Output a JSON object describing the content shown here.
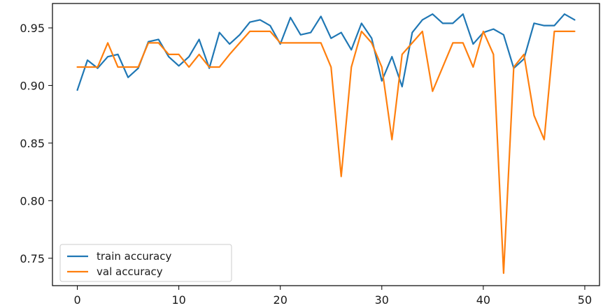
{
  "chart_data": {
    "type": "line",
    "title": "",
    "xlabel": "",
    "ylabel": "",
    "xlim": [
      -2.45,
      51.45
    ],
    "ylim": [
      0.7262,
      0.9712
    ],
    "xticks": [
      0,
      10,
      20,
      30,
      40,
      50
    ],
    "yticks": [
      0.75,
      0.8,
      0.85,
      0.9,
      0.95
    ],
    "ytick_labels": [
      "0.75",
      "0.80",
      "0.85",
      "0.90",
      "0.95"
    ],
    "xtick_labels": [
      "0",
      "10",
      "20",
      "30",
      "40",
      "50"
    ],
    "grid": false,
    "legend_position": "lower-left",
    "x": [
      0,
      1,
      2,
      3,
      4,
      5,
      6,
      7,
      8,
      9,
      10,
      11,
      12,
      13,
      14,
      15,
      16,
      17,
      18,
      19,
      20,
      21,
      22,
      23,
      24,
      25,
      26,
      27,
      28,
      29,
      30,
      31,
      32,
      33,
      34,
      35,
      36,
      37,
      38,
      39,
      40,
      41,
      42,
      43,
      44,
      45,
      46,
      47,
      48,
      49
    ],
    "series": [
      {
        "name": "train accuracy",
        "color": "#1f77b4",
        "values": [
          0.896,
          0.922,
          0.915,
          0.925,
          0.927,
          0.907,
          0.915,
          0.938,
          0.94,
          0.925,
          0.917,
          0.925,
          0.94,
          0.915,
          0.946,
          0.936,
          0.944,
          0.955,
          0.957,
          0.952,
          0.936,
          0.959,
          0.944,
          0.946,
          0.96,
          0.941,
          0.946,
          0.931,
          0.954,
          0.941,
          0.904,
          0.925,
          0.899,
          0.946,
          0.957,
          0.962,
          0.954,
          0.954,
          0.962,
          0.936,
          0.946,
          0.949,
          0.944,
          0.915,
          0.923,
          0.954,
          0.952,
          0.952,
          0.962,
          0.957
        ]
      },
      {
        "name": "val accuracy",
        "color": "#ff7f0e",
        "values": [
          0.916,
          0.916,
          0.916,
          0.937,
          0.916,
          0.916,
          0.916,
          0.937,
          0.937,
          0.927,
          0.927,
          0.916,
          0.927,
          0.916,
          0.916,
          0.927,
          0.937,
          0.947,
          0.947,
          0.947,
          0.937,
          0.937,
          0.937,
          0.937,
          0.937,
          0.916,
          0.821,
          0.916,
          0.947,
          0.937,
          0.916,
          0.853,
          0.927,
          0.937,
          0.947,
          0.895,
          0.916,
          0.937,
          0.937,
          0.916,
          0.947,
          0.927,
          0.737,
          0.916,
          0.927,
          0.874,
          0.853,
          0.947,
          0.947,
          0.947
        ]
      }
    ]
  }
}
